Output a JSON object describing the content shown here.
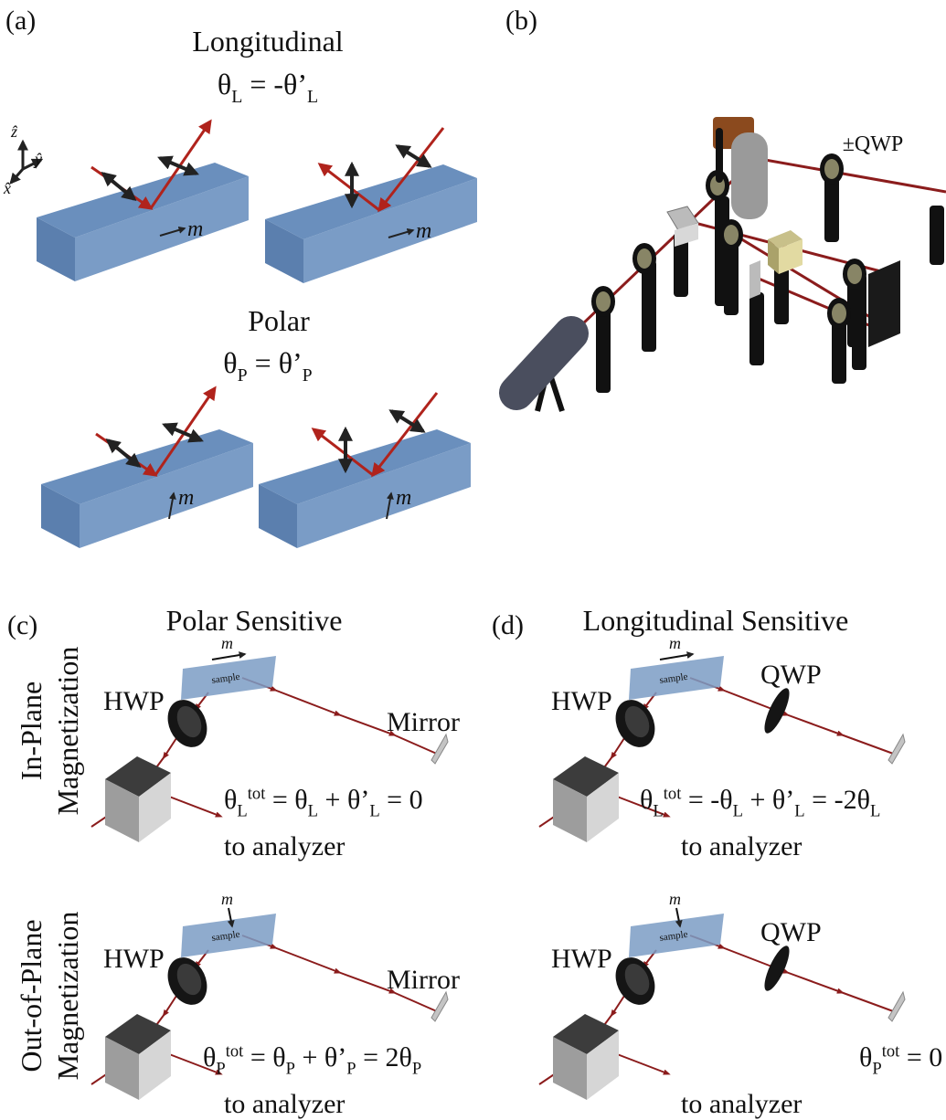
{
  "panel_a": {
    "label": "(a)",
    "title_longitudinal": "Longitudinal",
    "eq_longitudinal": [
      "θ",
      "L",
      " = -θ’",
      "L"
    ],
    "title_polar": "Polar",
    "eq_polar": [
      "θ",
      "P",
      " = θ’",
      "P"
    ],
    "axes": [
      "ẑ",
      "ŷ",
      "x̂"
    ],
    "m_labels": [
      "m",
      "m",
      "m",
      "m"
    ]
  },
  "panel_b": {
    "label": "(b)",
    "qwp": "±QWP"
  },
  "panel_c": {
    "label": "(c)",
    "title": "Polar Sensitive",
    "rows": [
      {
        "side_label": [
          "In-Plane",
          "Magnetization"
        ],
        "hwp": "HWP",
        "mirror": "Mirror",
        "sample": "sample",
        "m": "m",
        "equation": [
          "θ",
          "L",
          "tot",
          " = θ",
          "L",
          " + θ’",
          "L",
          " = 0"
        ],
        "output": "to analyzer"
      },
      {
        "side_label": [
          "Out-of-Plane",
          "Magnetization"
        ],
        "hwp": "HWP",
        "mirror": "Mirror",
        "sample": "sample",
        "m": "m",
        "equation": [
          "θ",
          "P",
          "tot",
          " = θ",
          "P",
          " + θ’",
          "P",
          " = 2θ",
          "P"
        ],
        "output": "to analyzer"
      }
    ]
  },
  "panel_d": {
    "label": "(d)",
    "title": "Longitudinal Sensitive",
    "rows": [
      {
        "hwp": "HWP",
        "qwp": "QWP",
        "sample": "sample",
        "m": "m",
        "equation": [
          "θ",
          "L",
          "tot",
          " = -θ",
          "L",
          " + θ’",
          "L",
          " = -2θ",
          "L"
        ],
        "output": "to analyzer"
      },
      {
        "hwp": "HWP",
        "qwp": "QWP",
        "sample": "sample",
        "m": "m",
        "equation": [
          "θ",
          "P",
          "tot",
          " = 0"
        ],
        "output": "to analyzer"
      }
    ]
  }
}
